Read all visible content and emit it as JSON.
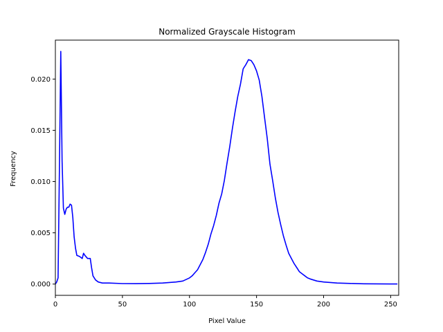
{
  "chart_data": {
    "type": "line",
    "title": "Normalized Grayscale Histogram",
    "xlabel": "Pixel Value",
    "ylabel": "Frequency",
    "xlim": [
      0,
      256
    ],
    "ylim": [
      -0.0011,
      0.0238
    ],
    "xticks": [
      0,
      50,
      100,
      150,
      200,
      250
    ],
    "xtick_labels": [
      "0",
      "50",
      "100",
      "150",
      "200",
      "250"
    ],
    "yticks": [
      0.0,
      0.005,
      0.01,
      0.015,
      0.02
    ],
    "ytick_labels": [
      "0.000",
      "0.005",
      "0.010",
      "0.015",
      "0.020"
    ],
    "grid": false,
    "legend": false,
    "line_color": "#0000ff",
    "series": [
      {
        "x": [
          0,
          1,
          2,
          3,
          4,
          5,
          6,
          7,
          8,
          9,
          10,
          11,
          12,
          13,
          14,
          15,
          16,
          18,
          20,
          21,
          22,
          24,
          26,
          27,
          28,
          30,
          32,
          35,
          40,
          50,
          60,
          70,
          80,
          90,
          95,
          100,
          102,
          104,
          106,
          108,
          110,
          112,
          114,
          116,
          118,
          120,
          122,
          124,
          126,
          128,
          130,
          132,
          134,
          136,
          138,
          140,
          142,
          144,
          146,
          148,
          150,
          152,
          154,
          156,
          158,
          160,
          162,
          164,
          166,
          168,
          170,
          172,
          174,
          176,
          178,
          180,
          182,
          184,
          186,
          188,
          190,
          195,
          200,
          210,
          220,
          230,
          240,
          250,
          255
        ],
        "y": [
          0.0,
          0.0002,
          0.0006,
          0.011,
          0.0227,
          0.012,
          0.0074,
          0.0068,
          0.0073,
          0.0075,
          0.0075,
          0.0078,
          0.0077,
          0.0065,
          0.0046,
          0.0035,
          0.0028,
          0.0027,
          0.0025,
          0.003,
          0.0028,
          0.0025,
          0.0025,
          0.0016,
          0.0008,
          0.0004,
          0.0002,
          0.0001,
          0.0001,
          5e-05,
          4e-05,
          6e-05,
          0.0001,
          0.0002,
          0.0003,
          0.0006,
          0.0008,
          0.0011,
          0.0014,
          0.0019,
          0.0024,
          0.0031,
          0.0039,
          0.0049,
          0.0057,
          0.0067,
          0.0079,
          0.0088,
          0.0101,
          0.0118,
          0.0134,
          0.0152,
          0.0168,
          0.0183,
          0.0195,
          0.021,
          0.0214,
          0.0219,
          0.0218,
          0.0214,
          0.0208,
          0.0199,
          0.0183,
          0.0162,
          0.0142,
          0.0117,
          0.0101,
          0.0084,
          0.007,
          0.0058,
          0.0047,
          0.0038,
          0.003,
          0.0025,
          0.002,
          0.0016,
          0.0012,
          0.001,
          0.0008,
          0.0006,
          0.0005,
          0.0003,
          0.0002,
          0.0001,
          6e-05,
          3e-05,
          2e-05,
          1e-05,
          1e-05
        ]
      }
    ]
  }
}
